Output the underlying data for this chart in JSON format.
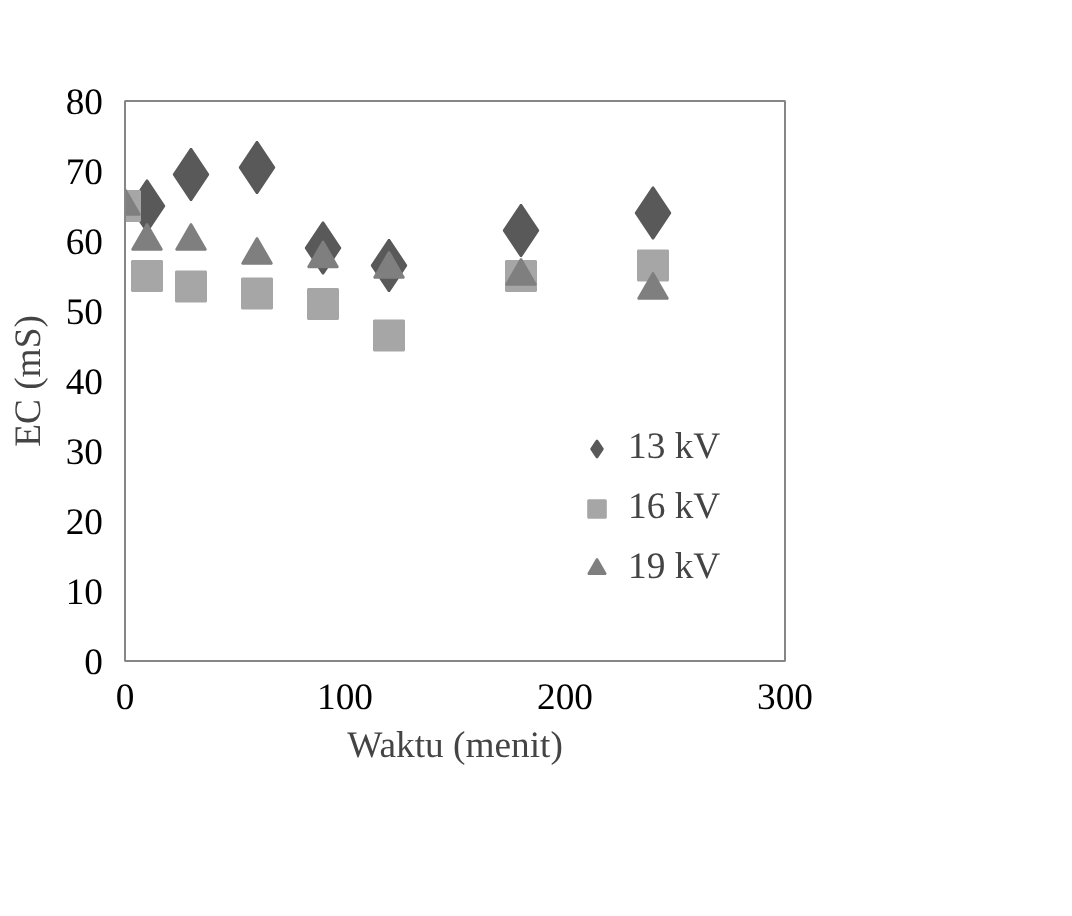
{
  "chart_data": {
    "type": "scatter",
    "xlabel": "Waktu (menit)",
    "ylabel": "EC (mS)",
    "x": [
      0,
      10,
      30,
      60,
      90,
      120,
      180,
      240
    ],
    "series": [
      {
        "name": "13 kV",
        "color": "#595959",
        "marker": "diamond",
        "values": [
          null,
          65,
          69.5,
          70.5,
          59,
          56.5,
          61.5,
          64
        ]
      },
      {
        "name": "16 kV",
        "color": "#a6a6a6",
        "marker": "square",
        "values": [
          65,
          55,
          53.5,
          52.5,
          51,
          46.5,
          55,
          56.5
        ]
      },
      {
        "name": "19 kV",
        "color": "#7f7f7f",
        "marker": "triangle",
        "values": [
          65,
          60,
          60,
          58,
          57.5,
          56,
          55,
          53
        ]
      }
    ],
    "xlim": [
      0,
      300
    ],
    "xticks": [
      0,
      100,
      200,
      300
    ],
    "ylim": [
      0,
      80
    ],
    "yticks": [
      0,
      10,
      20,
      30,
      40,
      50,
      60,
      70,
      80
    ],
    "grid": false,
    "legend": "right"
  }
}
